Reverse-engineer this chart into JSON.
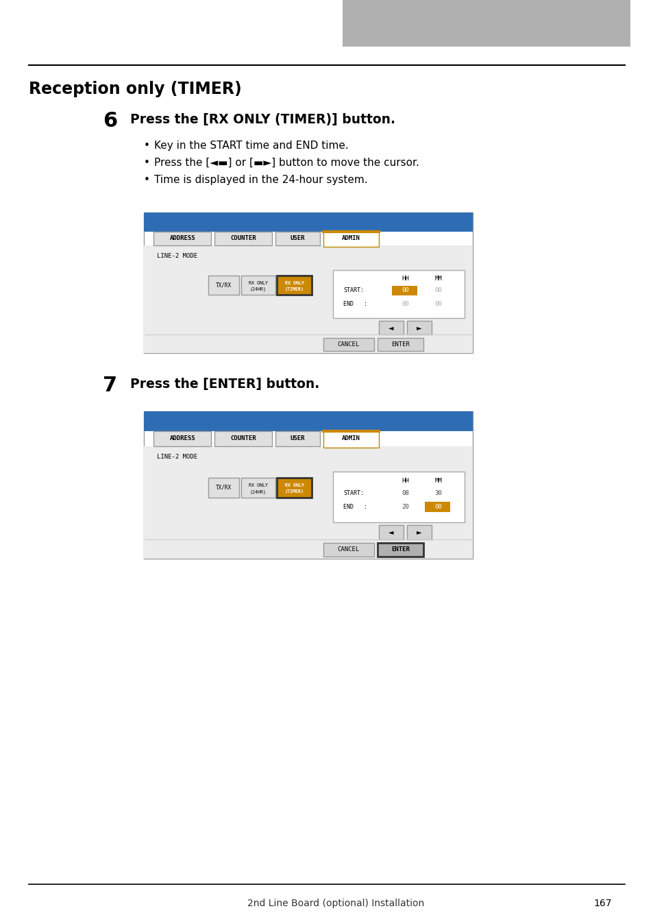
{
  "section_title": "Reception only (TIMER)",
  "step6_number": "6",
  "step6_heading": "Press the [RX ONLY (TIMER)] button.",
  "step6_bullets": [
    "Key in the START time and END time.",
    "Press the [◄▬] or [▬►] button to move the cursor.",
    "Time is displayed in the 24-hour system."
  ],
  "step7_number": "7",
  "step7_heading": "Press the [ENTER] button.",
  "footer_text": "2nd Line Board (optional) Installation",
  "footer_page": "167",
  "bg_color": "#ffffff",
  "blue_header": "#2e6db4",
  "tab_active_color": "#cc8800",
  "tab_inactive_bg": "#e0e0e0",
  "button_orange": "#cc8800",
  "button_gray": "#d0d0d0",
  "screen_bg": "#ececec",
  "value_highlight": "#cc8800",
  "gray_top_rect": "#b0b0b0"
}
